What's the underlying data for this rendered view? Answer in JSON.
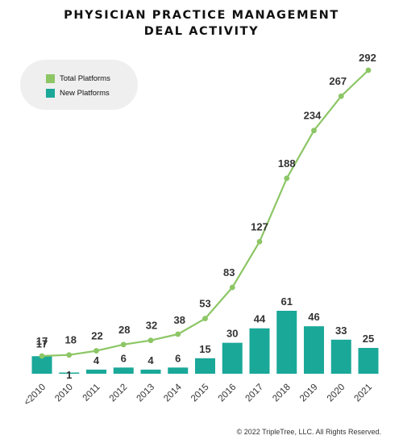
{
  "title_line1": "PHYSICIAN PRACTICE MANAGEMENT",
  "title_line2": "DEAL ACTIVITY",
  "copyright": "© 2022 TripleTree, LLC. All Rights Reserved.",
  "colors": {
    "total": "#8cc665",
    "new": "#1aa899",
    "label": "#333333"
  },
  "chart_data": {
    "type": "bar",
    "categories": [
      "<2010",
      "2010",
      "2011",
      "2012",
      "2013",
      "2014",
      "2015",
      "2016",
      "2017",
      "2018",
      "2019",
      "2020",
      "2021"
    ],
    "series": [
      {
        "name": "Total Platforms",
        "type": "line",
        "values": [
          17,
          18,
          22,
          28,
          32,
          38,
          53,
          83,
          127,
          188,
          234,
          267,
          292
        ]
      },
      {
        "name": "New Platforms",
        "type": "bar",
        "values": [
          17,
          1,
          4,
          6,
          4,
          6,
          15,
          30,
          44,
          61,
          46,
          33,
          25
        ]
      }
    ],
    "legend_position": "top-left",
    "grid": false
  }
}
